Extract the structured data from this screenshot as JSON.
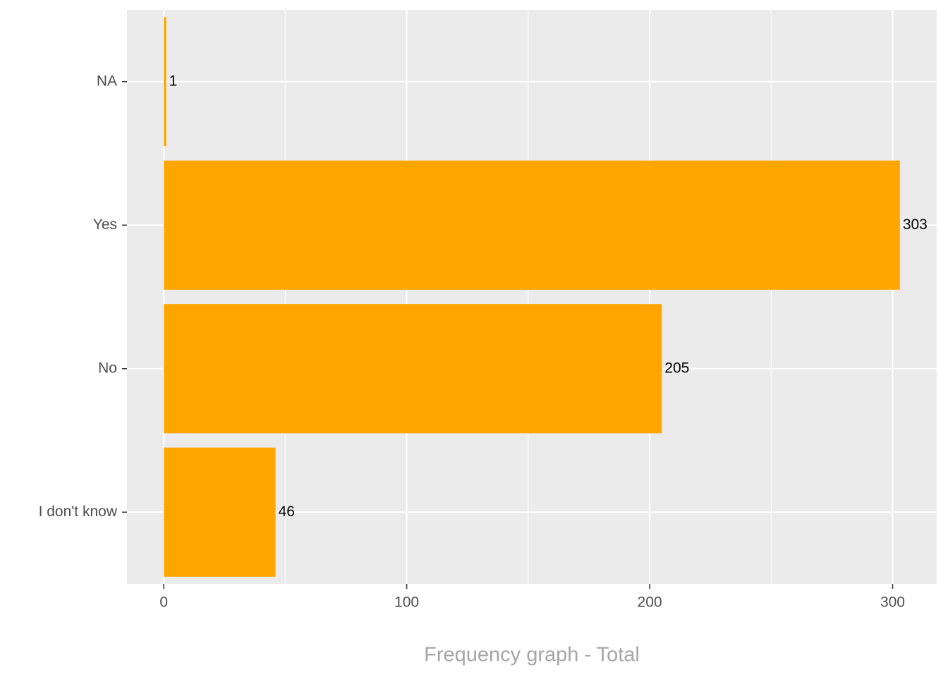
{
  "chart_data": {
    "type": "bar",
    "orientation": "horizontal",
    "x_label": "Frequency graph - Total",
    "categories": [
      "I don't know",
      "No",
      "Yes",
      "NA"
    ],
    "values": [
      46,
      205,
      303,
      1
    ],
    "color": "#ffa500",
    "xlim": [
      -15.15,
      318.15
    ],
    "xticks": [
      0,
      100,
      200,
      300
    ],
    "grid": true,
    "minor_grid": true,
    "panel_color": "#ebebeb"
  }
}
